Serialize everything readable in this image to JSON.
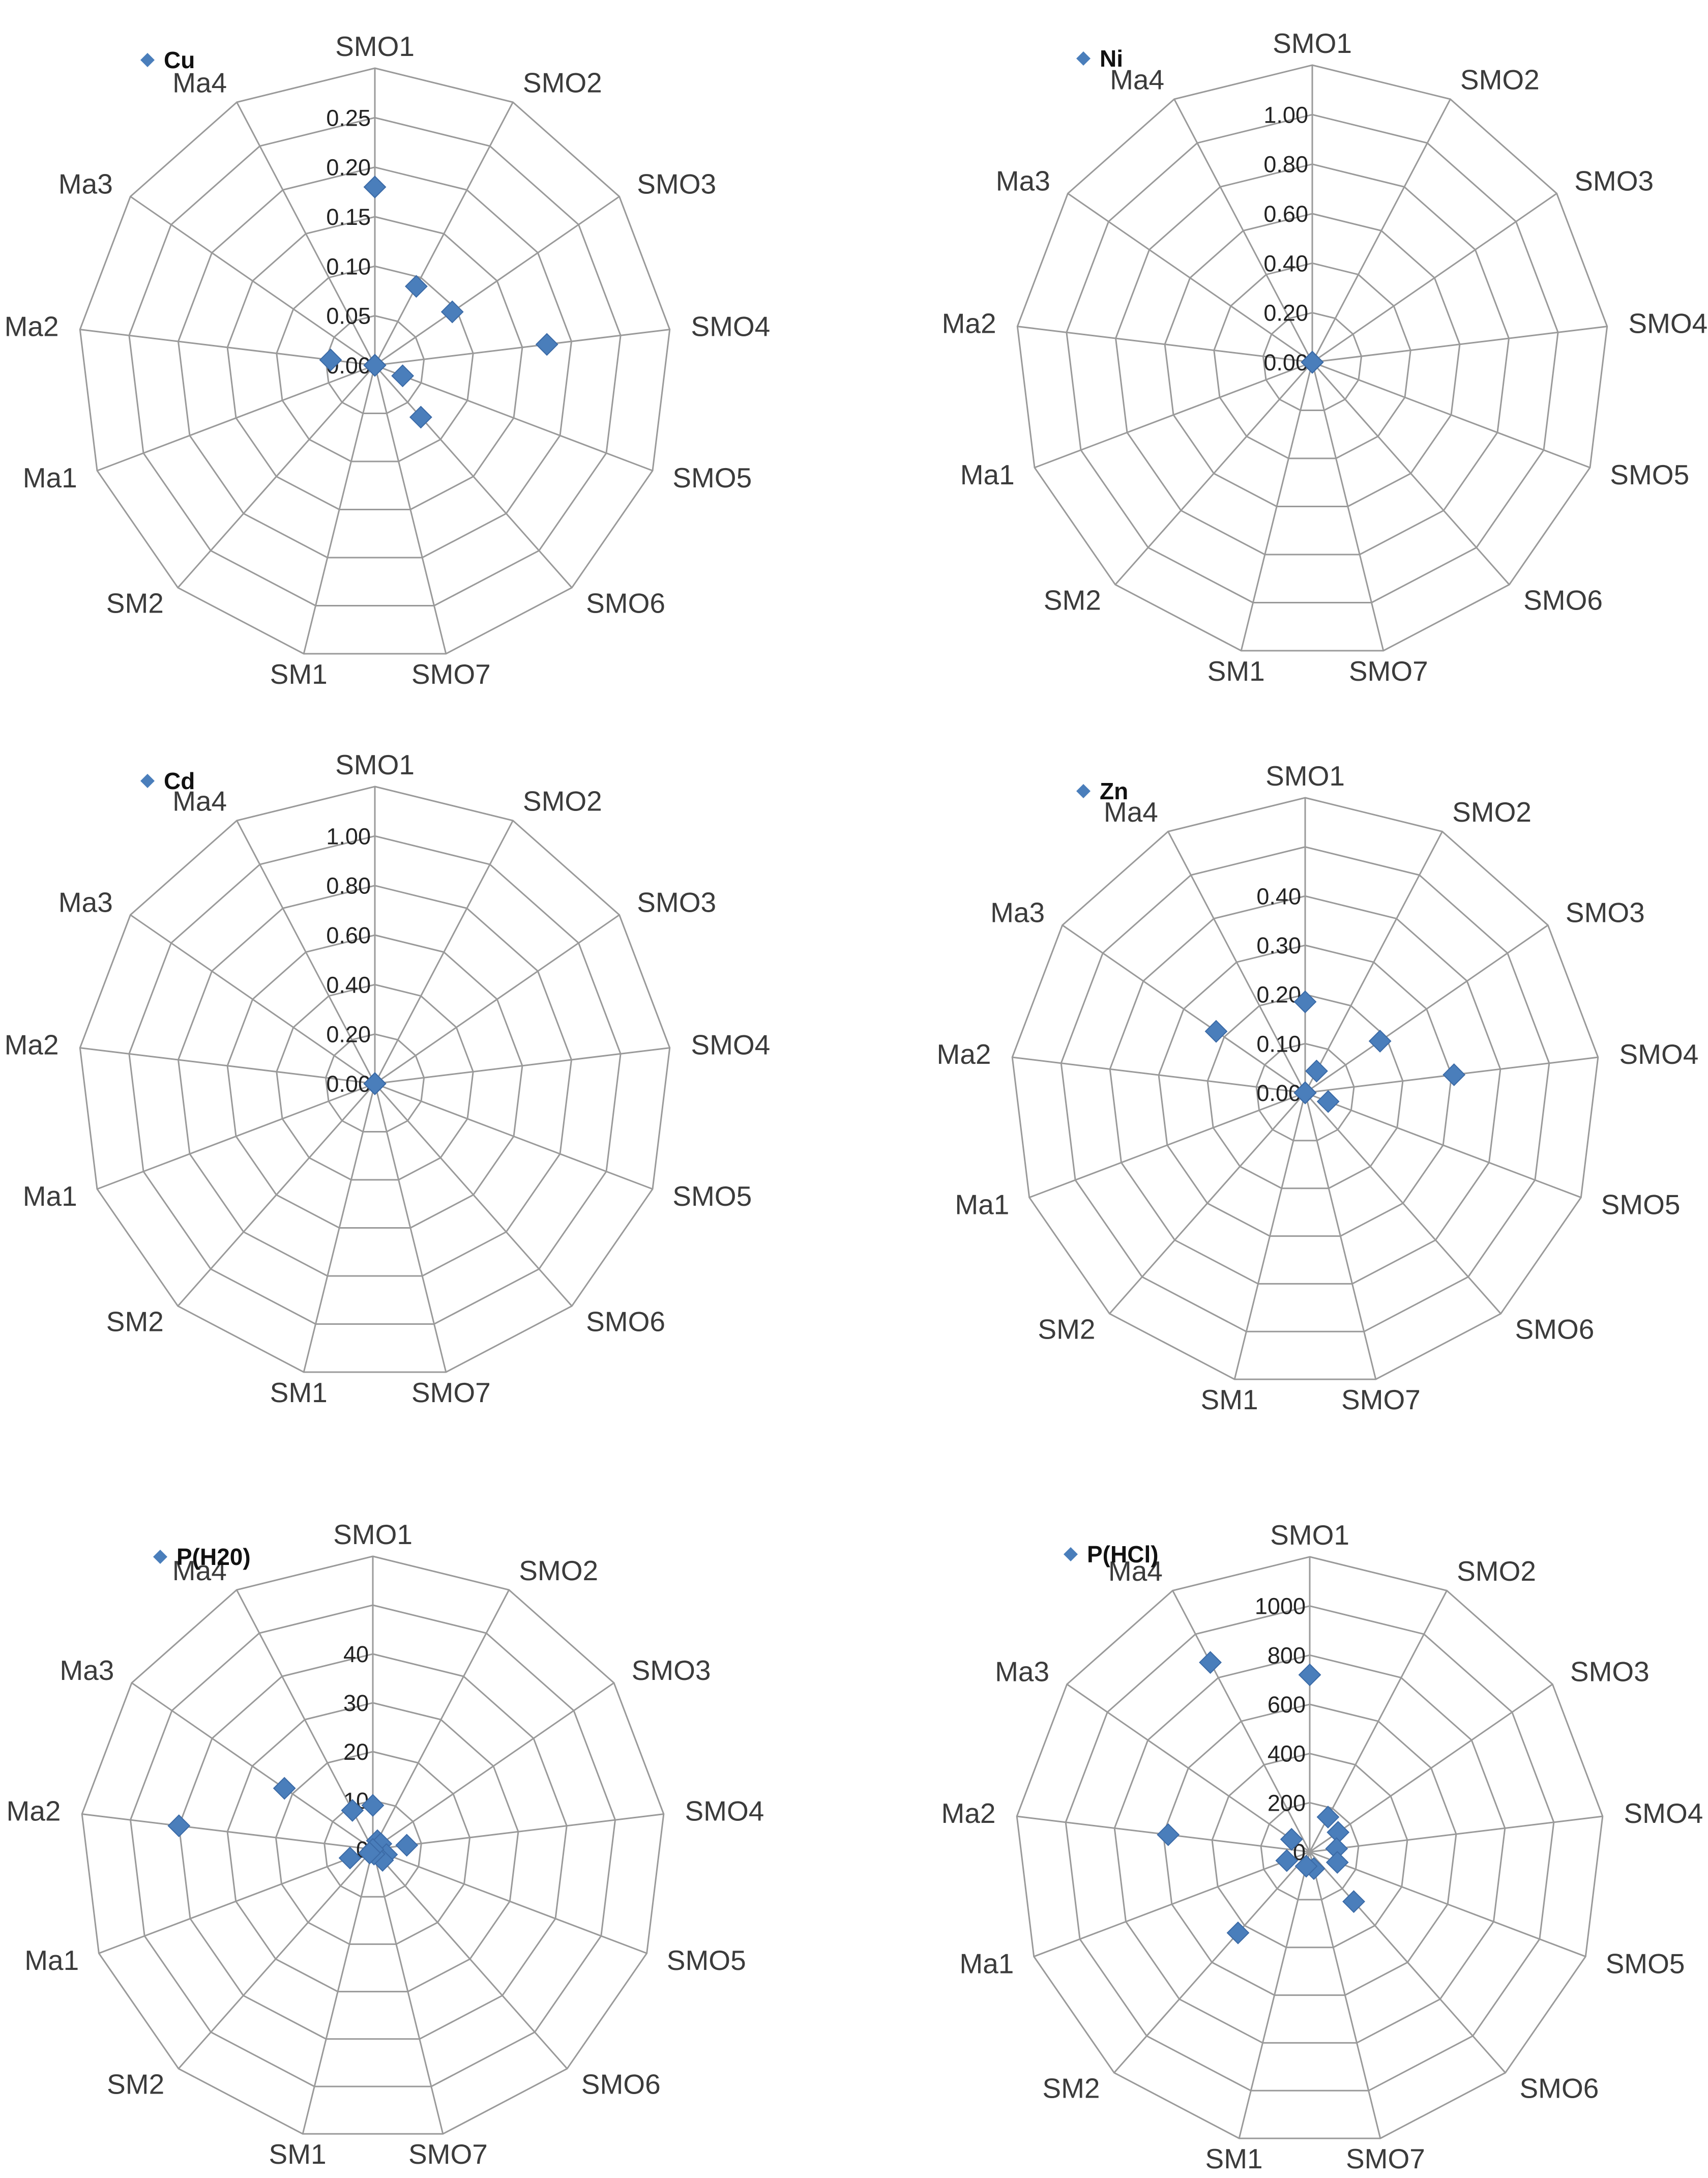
{
  "series_color": "#4a7ebb",
  "chart_data": [
    {
      "type": "radar",
      "title": "",
      "legend": "Cu",
      "legend_placement": "top-left",
      "axes": [
        "SMO1",
        "SMO2",
        "SMO3",
        "SMO4",
        "SMO5",
        "SMO6",
        "SMO7",
        "SM1",
        "SM2",
        "Ma1",
        "Ma2",
        "Ma3",
        "Ma4"
      ],
      "values": [
        0.18,
        0.09,
        0.095,
        0.175,
        0.03,
        0.07,
        0.0,
        0.0,
        0.0,
        0.0,
        0.045,
        0.0,
        0.0
      ],
      "ticks": [
        "0.00",
        "0.05",
        "0.10",
        "0.15",
        "0.20",
        "0.25"
      ],
      "rmax": 0.25
    },
    {
      "type": "radar",
      "title": "",
      "legend": "Ni",
      "legend_placement": "top-left",
      "axes": [
        "SMO1",
        "SMO2",
        "SMO3",
        "SMO4",
        "SMO5",
        "SMO6",
        "SMO7",
        "SM1",
        "SM2",
        "Ma1",
        "Ma2",
        "Ma3",
        "Ma4"
      ],
      "values": [
        0.0,
        0.0,
        0.0,
        0.0,
        0.0,
        0.0,
        0.0,
        0.0,
        0.0,
        0.0,
        0.0,
        0.0,
        0.0
      ],
      "ticks": [
        "0.00",
        "0.20",
        "0.40",
        "0.60",
        "0.80",
        "1.00"
      ],
      "rmax": 1.0
    },
    {
      "type": "radar",
      "title": "",
      "legend": "Cd",
      "legend_placement": "top-left",
      "axes": [
        "SMO1",
        "SMO2",
        "SMO3",
        "SMO4",
        "SMO5",
        "SMO6",
        "SMO7",
        "SM1",
        "SM2",
        "Ma1",
        "Ma2",
        "Ma3",
        "Ma4"
      ],
      "values": [
        0.0,
        0.0,
        0.0,
        0.0,
        0.0,
        0.0,
        0.0,
        0.0,
        0.0,
        0.0,
        0.0,
        0.0,
        0.0
      ],
      "ticks": [
        "0.00",
        "0.20",
        "0.40",
        "0.60",
        "0.80",
        "1.00"
      ],
      "rmax": 1.0
    },
    {
      "type": "radar",
      "title": "",
      "legend": "Zn",
      "legend_placement": "top-left",
      "axes": [
        "SMO1",
        "SMO2",
        "SMO3",
        "SMO4",
        "SMO5",
        "SMO6",
        "SMO7",
        "SM1",
        "SM2",
        "Ma1",
        "Ma2",
        "Ma3",
        "Ma4"
      ],
      "values": [
        0.185,
        0.05,
        0.185,
        0.305,
        0.05,
        0.0,
        0.0,
        0.0,
        0.0,
        0.0,
        0.0,
        0.22,
        0.0
      ],
      "ticks": [
        "0.00",
        "0.10",
        "0.20",
        "0.30",
        "0.40"
      ],
      "rmax": 0.4
    },
    {
      "type": "radar",
      "title": "",
      "legend": "P(H20)",
      "legend_placement": "top-left",
      "axes": [
        "SMO1",
        "SMO2",
        "SMO3",
        "SMO4",
        "SMO5",
        "SMO6",
        "SMO7",
        "SM1",
        "SM2",
        "Ma1",
        "Ma2",
        "Ma3",
        "Ma4"
      ],
      "values": [
        9,
        2,
        2,
        7,
        3,
        3,
        1,
        0,
        1,
        5,
        40,
        22,
        9
      ],
      "ticks": [
        "0",
        "10",
        "20",
        "30",
        "40"
      ],
      "rmax": 40
    },
    {
      "type": "radar",
      "title": "",
      "legend": "P(HCl)",
      "legend_placement": "top-left",
      "axes": [
        "SMO1",
        "SMO2",
        "SMO3",
        "SMO4",
        "SMO5",
        "SMO6",
        "SMO7",
        "SM1",
        "SM2",
        "Ma1",
        "Ma2",
        "Ma3",
        "Ma4"
      ],
      "values": [
        720,
        160,
        140,
        110,
        120,
        270,
        70,
        60,
        440,
        100,
        580,
        90,
        870
      ],
      "ticks": [
        "0",
        "200",
        "400",
        "600",
        "800",
        "1000"
      ],
      "rmax": 1000
    }
  ]
}
